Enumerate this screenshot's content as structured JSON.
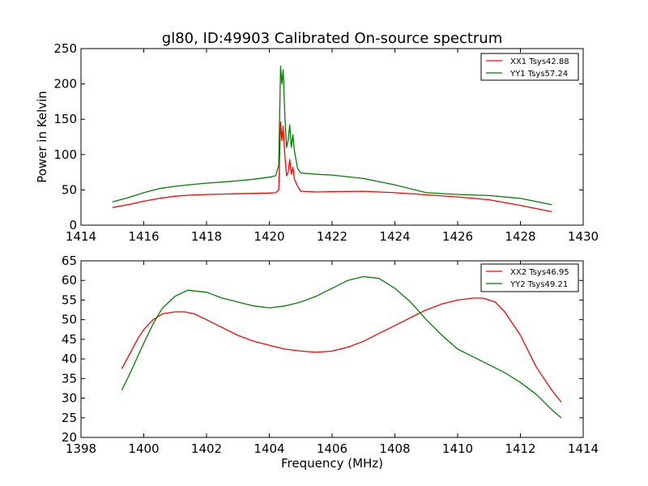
{
  "chart_data": [
    {
      "type": "line",
      "title": "gl80, ID:49903 Calibrated On-source spectrum",
      "xlabel": "",
      "ylabel": "Power in Kelvin",
      "xlim": [
        1414,
        1430
      ],
      "ylim": [
        0,
        250
      ],
      "xticks": [
        "1414",
        "1416",
        "1418",
        "1420",
        "1422",
        "1424",
        "1426",
        "1428",
        "1430"
      ],
      "yticks": [
        "0",
        "50",
        "100",
        "150",
        "200",
        "250"
      ],
      "grid": false,
      "legend_position": "top-right",
      "series": [
        {
          "name": "XX1 Tsys42.88",
          "color": "#ff0000",
          "points": [
            [
              1415.0,
              25
            ],
            [
              1415.5,
              29
            ],
            [
              1416.0,
              34
            ],
            [
              1416.5,
              38
            ],
            [
              1417.0,
              41
            ],
            [
              1417.5,
              42.5
            ],
            [
              1418.0,
              43.5
            ],
            [
              1418.5,
              44
            ],
            [
              1419.0,
              44.5
            ],
            [
              1419.5,
              45
            ],
            [
              1420.0,
              45.5
            ],
            [
              1420.2,
              46
            ],
            [
              1420.3,
              50
            ],
            [
              1420.36,
              146
            ],
            [
              1420.4,
              120
            ],
            [
              1420.44,
              140
            ],
            [
              1420.5,
              95
            ],
            [
              1420.55,
              70
            ],
            [
              1420.6,
              75
            ],
            [
              1420.65,
              93
            ],
            [
              1420.7,
              72
            ],
            [
              1420.75,
              82
            ],
            [
              1420.8,
              65
            ],
            [
              1420.9,
              55
            ],
            [
              1421.0,
              48
            ],
            [
              1421.5,
              47
            ],
            [
              1422.0,
              47.5
            ],
            [
              1423.0,
              48
            ],
            [
              1424.0,
              46
            ],
            [
              1425.0,
              43
            ],
            [
              1426.0,
              40
            ],
            [
              1427.0,
              36
            ],
            [
              1428.0,
              28
            ],
            [
              1429.0,
              19
            ]
          ]
        },
        {
          "name": "YY1 Tsys57.24",
          "color": "#008000",
          "points": [
            [
              1415.0,
              33
            ],
            [
              1415.5,
              39
            ],
            [
              1416.0,
              46
            ],
            [
              1416.5,
              52
            ],
            [
              1417.0,
              55
            ],
            [
              1417.5,
              57.5
            ],
            [
              1418.0,
              59.5
            ],
            [
              1418.5,
              61
            ],
            [
              1419.0,
              63
            ],
            [
              1419.5,
              65
            ],
            [
              1420.0,
              68
            ],
            [
              1420.2,
              70
            ],
            [
              1420.3,
              85
            ],
            [
              1420.36,
              225
            ],
            [
              1420.4,
              200
            ],
            [
              1420.44,
              220
            ],
            [
              1420.5,
              150
            ],
            [
              1420.55,
              110
            ],
            [
              1420.6,
              120
            ],
            [
              1420.65,
              142
            ],
            [
              1420.7,
              110
            ],
            [
              1420.75,
              128
            ],
            [
              1420.8,
              105
            ],
            [
              1420.9,
              80
            ],
            [
              1421.0,
              74
            ],
            [
              1421.5,
              72
            ],
            [
              1422.0,
              71
            ],
            [
              1423.0,
              66
            ],
            [
              1424.0,
              57
            ],
            [
              1425.0,
              46
            ],
            [
              1426.0,
              43.5
            ],
            [
              1427.0,
              42
            ],
            [
              1428.0,
              38
            ],
            [
              1429.0,
              29
            ]
          ]
        }
      ]
    },
    {
      "type": "line",
      "title": "",
      "xlabel": "Frequency (MHz)",
      "ylabel": "",
      "xlim": [
        1398,
        1414
      ],
      "ylim": [
        20,
        65
      ],
      "xticks": [
        "1398",
        "1400",
        "1402",
        "1404",
        "1406",
        "1408",
        "1410",
        "1412",
        "1414"
      ],
      "yticks": [
        "20",
        "25",
        "30",
        "35",
        "40",
        "45",
        "50",
        "55",
        "60",
        "65"
      ],
      "grid": false,
      "legend_position": "top-right",
      "series": [
        {
          "name": "XX2 Tsys46.95",
          "color": "#ff0000",
          "points": [
            [
              1399.3,
              37.5
            ],
            [
              1399.5,
              40.5
            ],
            [
              1399.8,
              45
            ],
            [
              1400.0,
              47.5
            ],
            [
              1400.3,
              50
            ],
            [
              1400.6,
              51.5
            ],
            [
              1401.0,
              52
            ],
            [
              1401.3,
              52
            ],
            [
              1401.6,
              51.5
            ],
            [
              1402.0,
              50
            ],
            [
              1402.5,
              48
            ],
            [
              1403.0,
              46
            ],
            [
              1403.5,
              44.5
            ],
            [
              1404.0,
              43.5
            ],
            [
              1404.5,
              42.5
            ],
            [
              1405.0,
              42
            ],
            [
              1405.5,
              41.7
            ],
            [
              1406.0,
              42
            ],
            [
              1406.5,
              43
            ],
            [
              1407.0,
              44.5
            ],
            [
              1407.5,
              46.5
            ],
            [
              1408.0,
              48.5
            ],
            [
              1408.5,
              50.5
            ],
            [
              1409.0,
              52.5
            ],
            [
              1409.5,
              54
            ],
            [
              1410.0,
              55
            ],
            [
              1410.5,
              55.5
            ],
            [
              1410.8,
              55.5
            ],
            [
              1411.2,
              54.5
            ],
            [
              1411.5,
              52
            ],
            [
              1412.0,
              46
            ],
            [
              1412.5,
              38
            ],
            [
              1413.0,
              32
            ],
            [
              1413.3,
              29
            ]
          ]
        },
        {
          "name": "YY2 Tsys49.21",
          "color": "#008000",
          "points": [
            [
              1399.3,
              32
            ],
            [
              1399.6,
              37
            ],
            [
              1400.0,
              44
            ],
            [
              1400.3,
              49
            ],
            [
              1400.6,
              53
            ],
            [
              1401.0,
              56
            ],
            [
              1401.4,
              57.5
            ],
            [
              1402.0,
              57
            ],
            [
              1402.5,
              55.5
            ],
            [
              1403.0,
              54.5
            ],
            [
              1403.5,
              53.5
            ],
            [
              1404.0,
              53
            ],
            [
              1404.5,
              53.5
            ],
            [
              1405.0,
              54.5
            ],
            [
              1405.5,
              56
            ],
            [
              1406.0,
              58
            ],
            [
              1406.5,
              60
            ],
            [
              1407.0,
              61
            ],
            [
              1407.5,
              60.5
            ],
            [
              1408.0,
              58
            ],
            [
              1408.5,
              54.5
            ],
            [
              1409.0,
              50
            ],
            [
              1409.5,
              46
            ],
            [
              1410.0,
              42.5
            ],
            [
              1410.5,
              40.5
            ],
            [
              1411.0,
              38.5
            ],
            [
              1411.5,
              36.5
            ],
            [
              1412.0,
              34
            ],
            [
              1412.5,
              31
            ],
            [
              1413.0,
              27
            ],
            [
              1413.3,
              25
            ]
          ]
        }
      ]
    }
  ]
}
